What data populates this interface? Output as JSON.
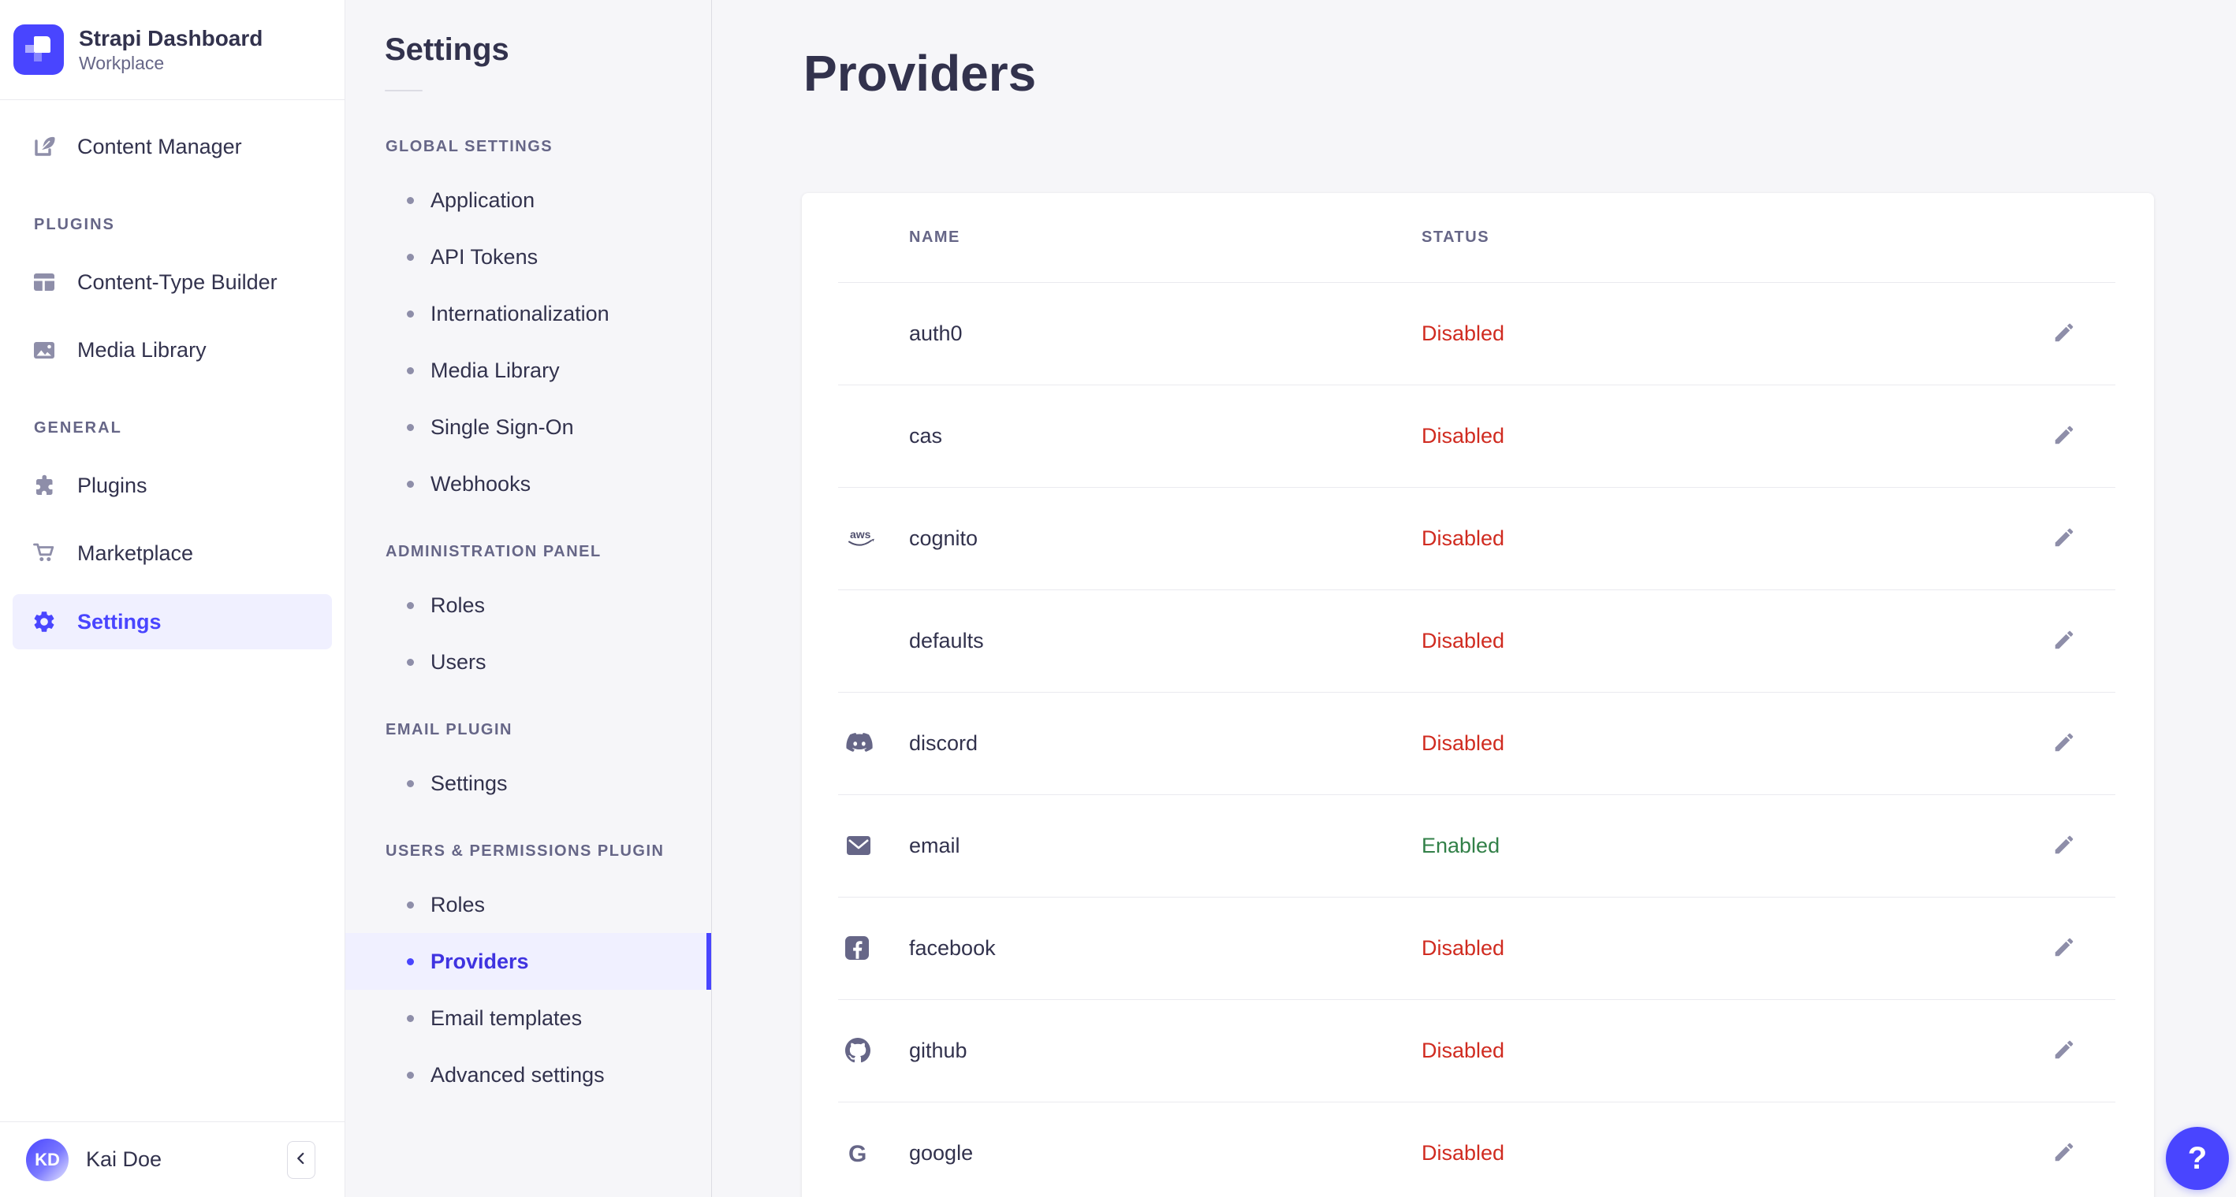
{
  "brand": {
    "title": "Strapi Dashboard",
    "subtitle": "Workplace"
  },
  "sidebar": {
    "top_items": [
      {
        "label": "Content Manager",
        "icon": "content-manager-icon",
        "active": false
      }
    ],
    "sections": [
      {
        "label": "PLUGINS",
        "items": [
          {
            "label": "Content-Type Builder",
            "icon": "content-type-builder-icon",
            "active": false
          },
          {
            "label": "Media Library",
            "icon": "media-library-icon",
            "active": false
          }
        ]
      },
      {
        "label": "GENERAL",
        "items": [
          {
            "label": "Plugins",
            "icon": "plugins-icon",
            "active": false
          },
          {
            "label": "Marketplace",
            "icon": "marketplace-icon",
            "active": false
          },
          {
            "label": "Settings",
            "icon": "settings-icon",
            "active": true
          }
        ]
      }
    ],
    "user": {
      "initials": "KD",
      "name": "Kai Doe"
    },
    "collapse_icon": "chevron-left-icon"
  },
  "subnav": {
    "title": "Settings",
    "sections": [
      {
        "label": "GLOBAL SETTINGS",
        "items": [
          {
            "label": "Application",
            "active": false
          },
          {
            "label": "API Tokens",
            "active": false
          },
          {
            "label": "Internationalization",
            "active": false
          },
          {
            "label": "Media Library",
            "active": false
          },
          {
            "label": "Single Sign-On",
            "active": false
          },
          {
            "label": "Webhooks",
            "active": false
          }
        ]
      },
      {
        "label": "ADMINISTRATION PANEL",
        "items": [
          {
            "label": "Roles",
            "active": false
          },
          {
            "label": "Users",
            "active": false
          }
        ]
      },
      {
        "label": "EMAIL PLUGIN",
        "items": [
          {
            "label": "Settings",
            "active": false
          }
        ]
      },
      {
        "label": "USERS & PERMISSIONS PLUGIN",
        "items": [
          {
            "label": "Roles",
            "active": false
          },
          {
            "label": "Providers",
            "active": true
          },
          {
            "label": "Email templates",
            "active": false
          },
          {
            "label": "Advanced settings",
            "active": false
          }
        ]
      }
    ]
  },
  "main": {
    "title": "Providers",
    "table": {
      "columns": [
        "NAME",
        "STATUS"
      ],
      "rows": [
        {
          "name": "auth0",
          "icon": null,
          "status": "Disabled"
        },
        {
          "name": "cas",
          "icon": null,
          "status": "Disabled"
        },
        {
          "name": "cognito",
          "icon": "aws-icon",
          "status": "Disabled"
        },
        {
          "name": "defaults",
          "icon": null,
          "status": "Disabled"
        },
        {
          "name": "discord",
          "icon": "discord-icon",
          "status": "Disabled"
        },
        {
          "name": "email",
          "icon": "email-icon",
          "status": "Enabled"
        },
        {
          "name": "facebook",
          "icon": "facebook-icon",
          "status": "Disabled"
        },
        {
          "name": "github",
          "icon": "github-icon",
          "status": "Disabled"
        },
        {
          "name": "google",
          "icon": "google-icon",
          "status": "Disabled"
        }
      ]
    },
    "help_label": "?"
  },
  "colors": {
    "accent": "#4945ff",
    "active_bg": "#f0f0ff",
    "status_disabled": "#d02b20",
    "status_enabled": "#328048",
    "muted": "#666687",
    "icon": "#8e8ea9"
  }
}
